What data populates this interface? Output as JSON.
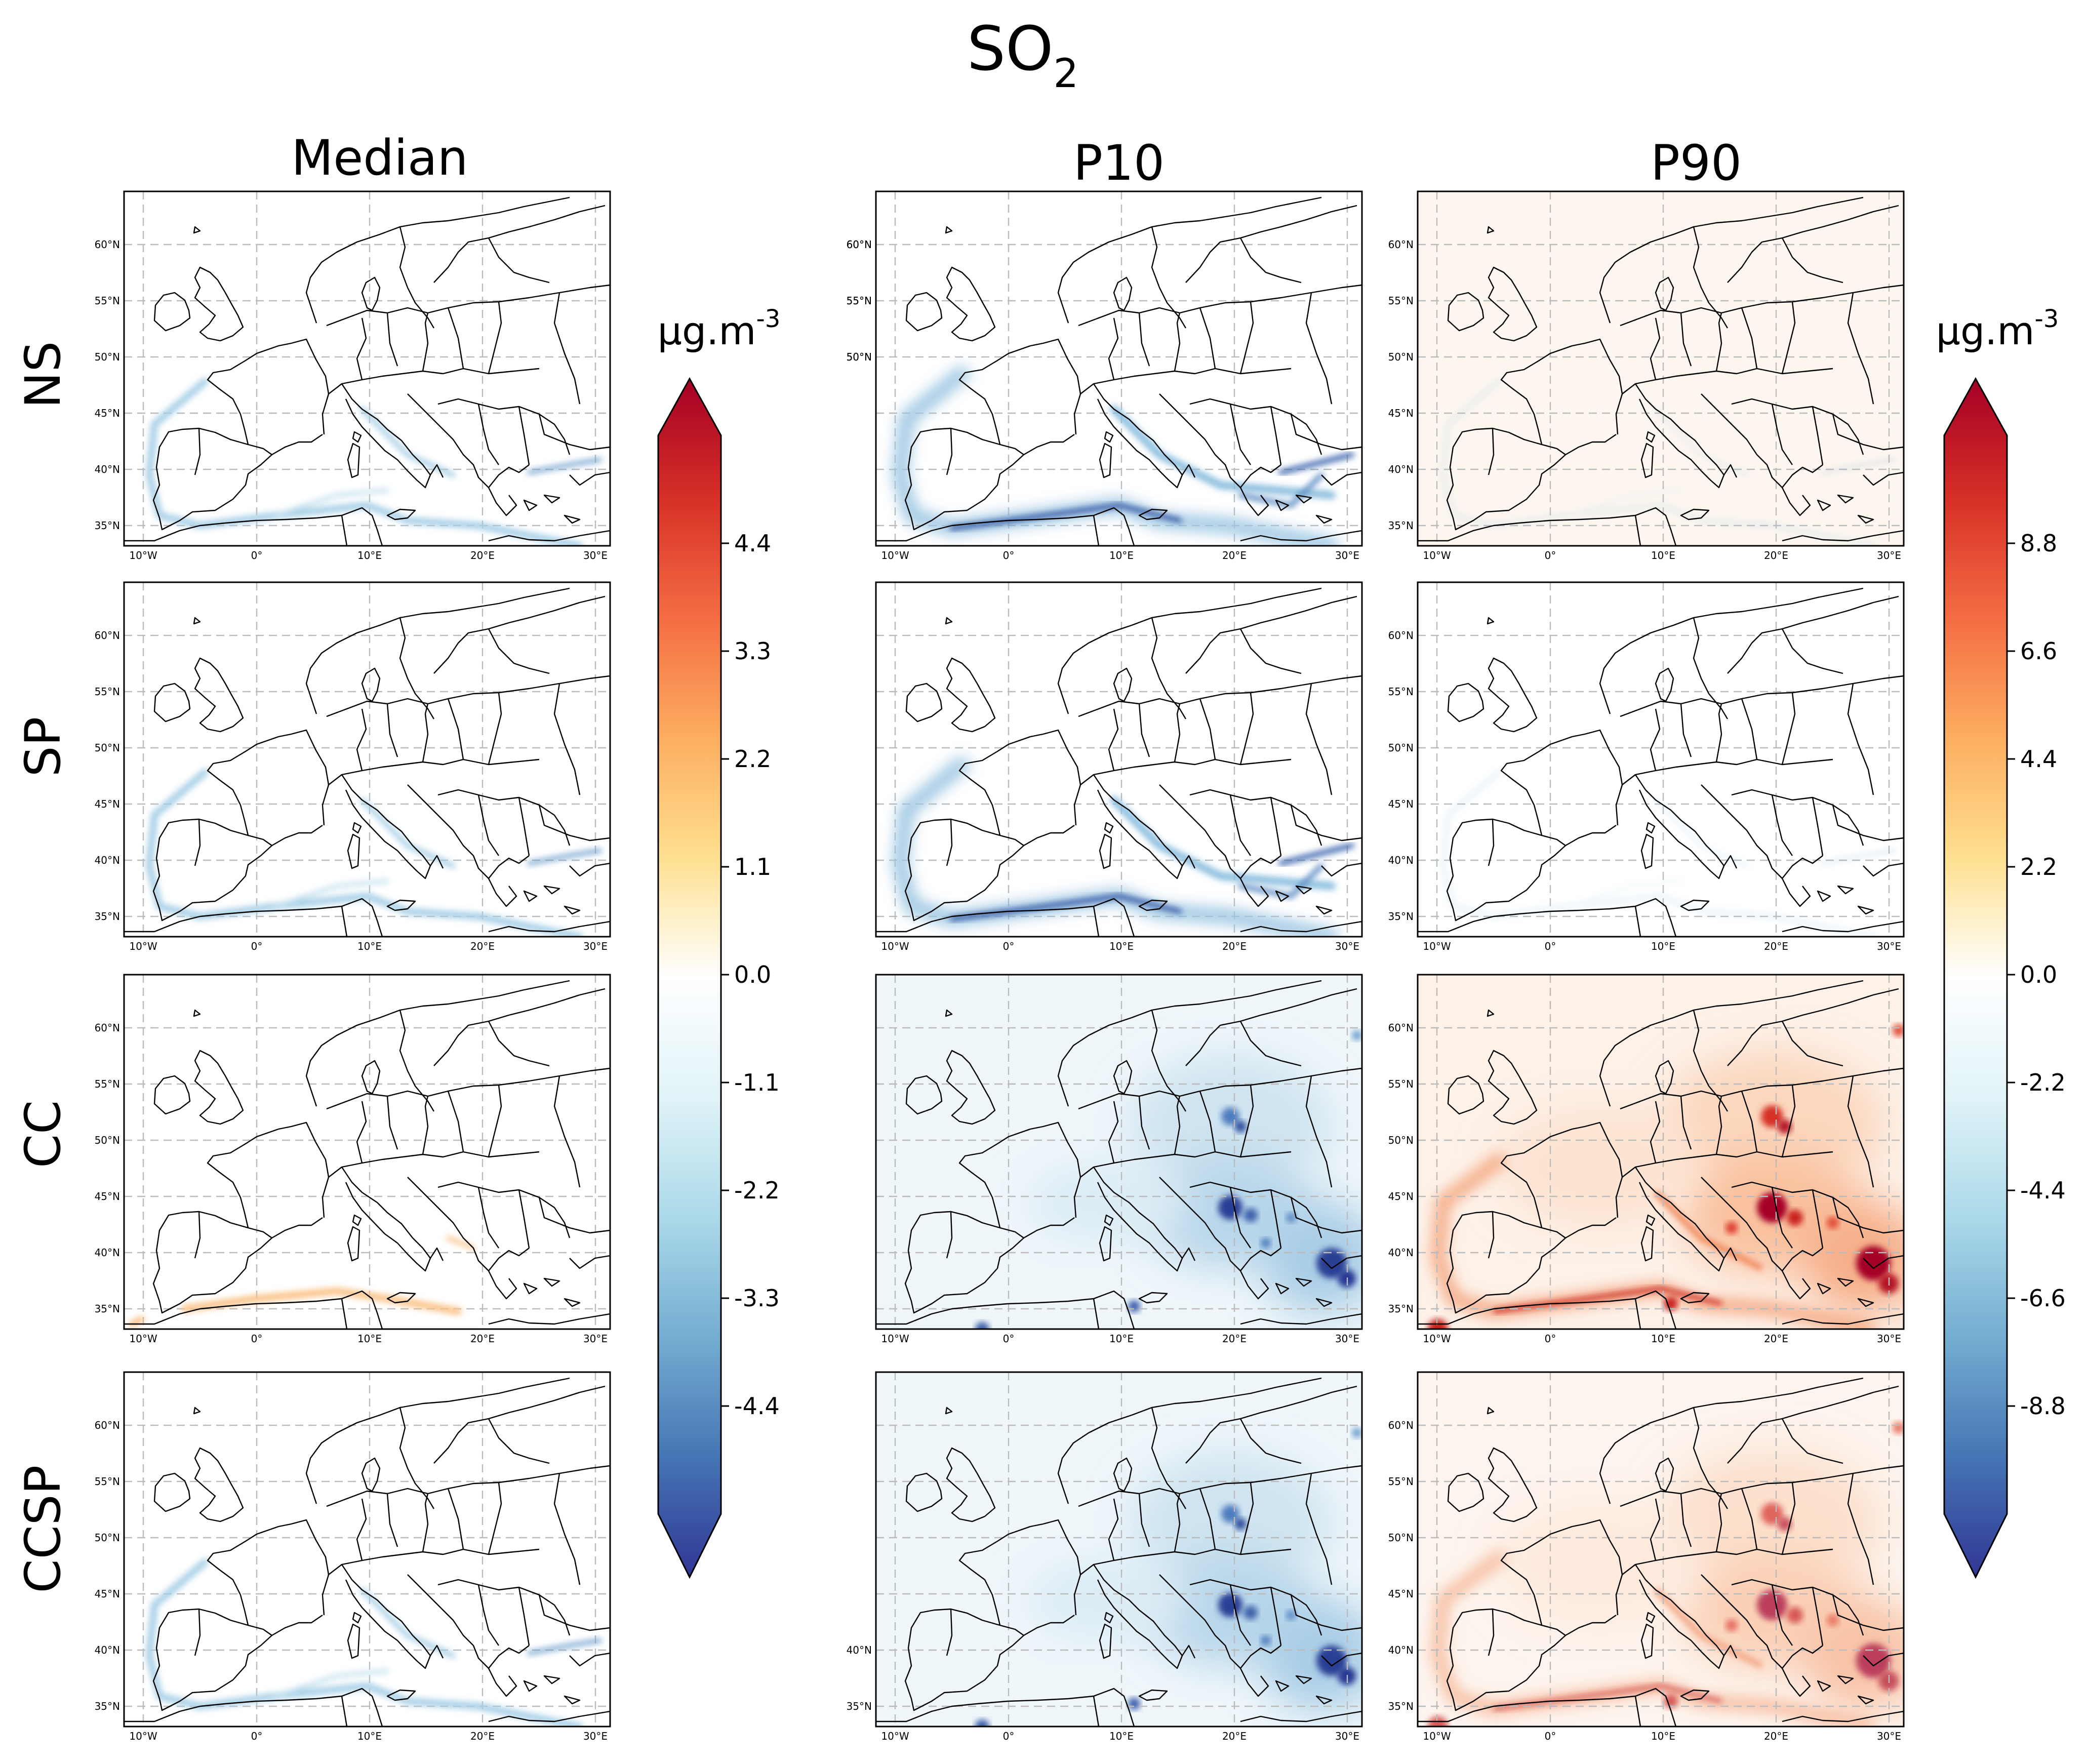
{
  "figure": {
    "title_main": "SO",
    "title_sub": "2",
    "columns": [
      "Median",
      "P10",
      "P90"
    ],
    "rows": [
      "NS",
      "SP",
      "CC",
      "CCSP"
    ]
  },
  "map_axes": {
    "lon_labels": [
      "10°W",
      "0°",
      "10°E",
      "20°E",
      "30°E"
    ],
    "lat_labels": [
      "35°N",
      "40°N",
      "45°N",
      "50°N",
      "55°N",
      "60°N"
    ],
    "lon_range": [
      -12,
      31
    ],
    "lat_range": [
      33,
      65
    ]
  },
  "colorbars": {
    "left": {
      "unit": "μg.m",
      "unit_exp": "-3",
      "ticks": [
        "4.4",
        "3.3",
        "2.2",
        "1.1",
        "0.0",
        "-1.1",
        "-2.2",
        "-3.3",
        "-4.4"
      ],
      "tick_values": [
        4.4,
        3.3,
        2.2,
        1.1,
        0.0,
        -1.1,
        -2.2,
        -3.3,
        -4.4
      ],
      "range": [
        -5.5,
        5.5
      ]
    },
    "right": {
      "unit": "μg.m",
      "unit_exp": "-3",
      "ticks": [
        "8.8",
        "6.6",
        "4.4",
        "2.2",
        "0.0",
        "-2.2",
        "-4.4",
        "-6.6",
        "-8.8"
      ],
      "tick_values": [
        8.8,
        6.6,
        4.4,
        2.2,
        0.0,
        -2.2,
        -4.4,
        -6.6,
        -8.8
      ],
      "range": [
        -11,
        11
      ]
    },
    "colormap": [
      "#313695",
      "#4575b4",
      "#74add1",
      "#abd9e9",
      "#e0f3f8",
      "#ffffff",
      "#fee090",
      "#fdae61",
      "#f46d43",
      "#d73027",
      "#a50026"
    ]
  },
  "panels": [
    {
      "row": "NS",
      "col": "Median",
      "style": "ship-blue-light",
      "lat_labels": true
    },
    {
      "row": "NS",
      "col": "P10",
      "style": "ship-blue",
      "lat_labels": "partial"
    },
    {
      "row": "NS",
      "col": "P90",
      "style": "faint-orange",
      "lat_labels": true
    },
    {
      "row": "SP",
      "col": "Median",
      "style": "ship-blue-light",
      "lat_labels": true
    },
    {
      "row": "SP",
      "col": "P10",
      "style": "ship-blue",
      "lat_labels": false
    },
    {
      "row": "SP",
      "col": "P90",
      "style": "faint",
      "lat_labels": true
    },
    {
      "row": "CC",
      "col": "Median",
      "style": "ship-orange-light",
      "lat_labels": true
    },
    {
      "row": "CC",
      "col": "P10",
      "style": "widespread-blue",
      "lat_labels": false
    },
    {
      "row": "CC",
      "col": "P90",
      "style": "widespread-red",
      "lat_labels": true
    },
    {
      "row": "CCSP",
      "col": "Median",
      "style": "ship-blue-light",
      "lat_labels": true
    },
    {
      "row": "CCSP",
      "col": "P10",
      "style": "widespread-blue",
      "lat_labels": "partial"
    },
    {
      "row": "CCSP",
      "col": "P90",
      "style": "widespread-red-light",
      "lat_labels": true
    }
  ]
}
